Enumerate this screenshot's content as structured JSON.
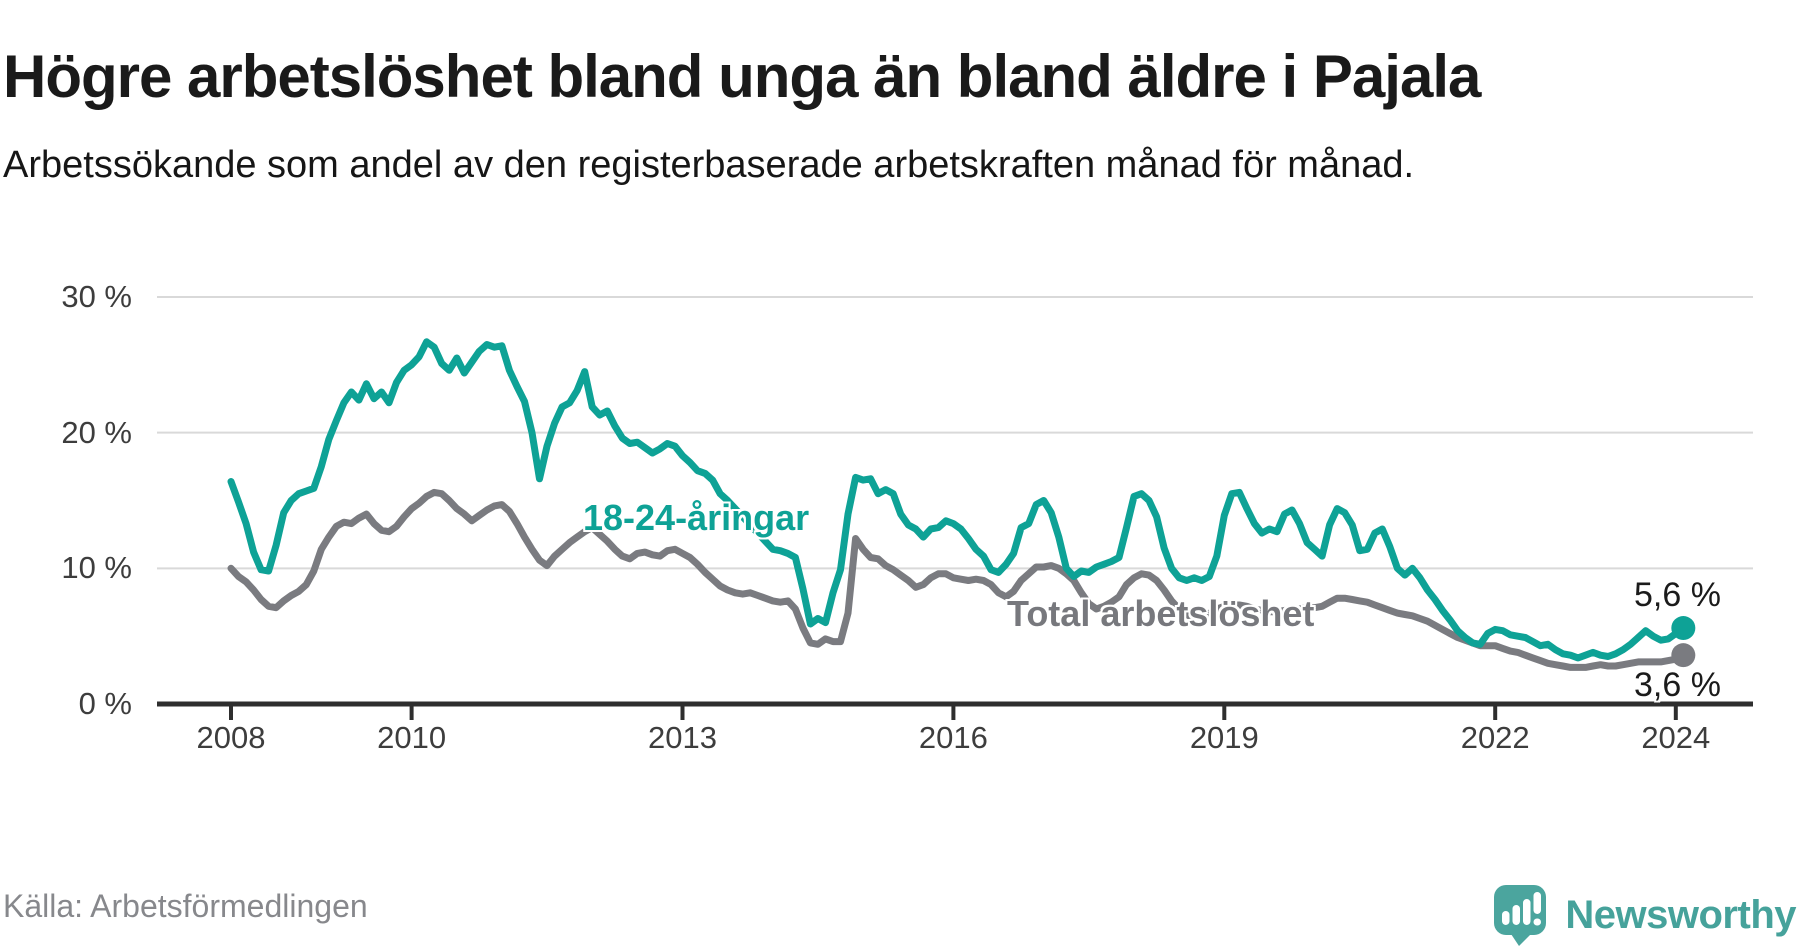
{
  "header": {
    "title": "Högre arbetslöshet bland unga än bland äldre i Pajala",
    "subtitle": "Arbetssökande som andel av den registerbaserade arbetskraften månad för månad."
  },
  "chart_data": {
    "type": "line",
    "frequency": "monthly",
    "start": "2008-01",
    "end": "2024-02",
    "grid": true,
    "ylim": [
      0,
      32
    ],
    "y_ticks": [
      {
        "value": 0,
        "label": "0 %"
      },
      {
        "value": 10,
        "label": "10 %"
      },
      {
        "value": 20,
        "label": "20 %"
      },
      {
        "value": 30,
        "label": "30 %"
      }
    ],
    "x_ticks": [
      2008,
      2010,
      2013,
      2016,
      2019,
      2022,
      2024
    ],
    "series": [
      {
        "name": "Total arbetslöshet",
        "color": "#7A7B80",
        "end_label": "3,6 %",
        "end_value": 3.6,
        "values": [
          10.0,
          9.4,
          9.0,
          8.4,
          7.7,
          7.2,
          7.1,
          7.6,
          8.0,
          8.3,
          8.8,
          9.8,
          11.4,
          12.3,
          13.1,
          13.4,
          13.3,
          13.7,
          14.0,
          13.3,
          12.8,
          12.7,
          13.1,
          13.8,
          14.4,
          14.8,
          15.3,
          15.6,
          15.5,
          15.0,
          14.4,
          14.0,
          13.5,
          13.9,
          14.3,
          14.6,
          14.7,
          14.2,
          13.3,
          12.3,
          11.4,
          10.6,
          10.2,
          10.9,
          11.4,
          11.9,
          12.3,
          12.7,
          13.0,
          12.5,
          12.0,
          11.4,
          10.9,
          10.7,
          11.1,
          11.2,
          11.0,
          10.9,
          11.3,
          11.4,
          11.1,
          10.8,
          10.3,
          9.7,
          9.2,
          8.7,
          8.4,
          8.2,
          8.1,
          8.2,
          8.0,
          7.8,
          7.6,
          7.5,
          7.6,
          7.0,
          5.6,
          4.5,
          4.4,
          4.8,
          4.6,
          4.6,
          6.7,
          12.2,
          11.4,
          10.8,
          10.7,
          10.2,
          9.9,
          9.5,
          9.1,
          8.6,
          8.8,
          9.3,
          9.6,
          9.6,
          9.3,
          9.2,
          9.1,
          9.2,
          9.1,
          8.8,
          8.2,
          7.9,
          8.3,
          9.1,
          9.6,
          10.1,
          10.1,
          10.2,
          10.0,
          9.6,
          9.1,
          8.2,
          7.4,
          7.0,
          7.2,
          7.5,
          7.9,
          8.8,
          9.3,
          9.6,
          9.5,
          9.1,
          8.4,
          7.6,
          7.0,
          6.6,
          6.3,
          6.4,
          6.7,
          7.0,
          7.2,
          7.3,
          7.3,
          7.2,
          7.0,
          6.9,
          6.8,
          6.8,
          6.9,
          6.9,
          7.0,
          7.1,
          7.1,
          7.2,
          7.5,
          7.8,
          7.8,
          7.7,
          7.6,
          7.5,
          7.3,
          7.1,
          6.9,
          6.7,
          6.6,
          6.5,
          6.3,
          6.1,
          5.8,
          5.5,
          5.2,
          4.9,
          4.7,
          4.5,
          4.3,
          4.3,
          4.3,
          4.1,
          3.9,
          3.8,
          3.6,
          3.4,
          3.2,
          3.0,
          2.9,
          2.8,
          2.7,
          2.7,
          2.7,
          2.8,
          2.9,
          2.8,
          2.8,
          2.9,
          3.0,
          3.1,
          3.1,
          3.1,
          3.1,
          3.2,
          3.3,
          3.6
        ]
      },
      {
        "name": "18-24-åringar",
        "color": "#0EA296",
        "end_label": "5,6 %",
        "end_value": 5.6,
        "values": [
          16.4,
          14.9,
          13.3,
          11.2,
          9.9,
          9.8,
          11.7,
          14.1,
          15.0,
          15.5,
          15.7,
          15.9,
          17.5,
          19.5,
          20.9,
          22.2,
          23.0,
          22.4,
          23.6,
          22.5,
          23.0,
          22.2,
          23.7,
          24.6,
          25.0,
          25.6,
          26.7,
          26.3,
          25.1,
          24.6,
          25.5,
          24.4,
          25.2,
          26.0,
          26.5,
          26.3,
          26.4,
          24.6,
          23.4,
          22.3,
          20.0,
          16.6,
          19.0,
          20.7,
          21.9,
          22.2,
          23.1,
          24.5,
          21.9,
          21.3,
          21.6,
          20.5,
          19.6,
          19.2,
          19.3,
          18.9,
          18.5,
          18.8,
          19.2,
          19.0,
          18.3,
          17.8,
          17.2,
          17.0,
          16.5,
          15.5,
          15.0,
          14.4,
          13.8,
          13.2,
          12.6,
          12.0,
          11.4,
          11.3,
          11.1,
          10.8,
          8.5,
          5.9,
          6.3,
          6.0,
          8.2,
          9.9,
          14.0,
          16.7,
          16.5,
          16.6,
          15.5,
          15.8,
          15.5,
          14.0,
          13.2,
          12.9,
          12.3,
          12.9,
          13.0,
          13.5,
          13.3,
          12.9,
          12.2,
          11.4,
          10.9,
          9.9,
          9.7,
          10.3,
          11.1,
          13.0,
          13.3,
          14.7,
          15.0,
          14.1,
          12.3,
          10.0,
          9.4,
          9.8,
          9.7,
          10.1,
          10.3,
          10.5,
          10.8,
          13.0,
          15.3,
          15.5,
          15.0,
          13.8,
          11.5,
          10.0,
          9.3,
          9.1,
          9.3,
          9.1,
          9.4,
          10.9,
          13.9,
          15.5,
          15.6,
          14.4,
          13.3,
          12.6,
          12.9,
          12.7,
          14.0,
          14.3,
          13.3,
          11.9,
          11.4,
          10.9,
          13.2,
          14.4,
          14.1,
          13.2,
          11.3,
          11.4,
          12.6,
          12.9,
          11.6,
          10.0,
          9.5,
          10.0,
          9.3,
          8.4,
          7.7,
          6.9,
          6.2,
          5.4,
          4.9,
          4.5,
          4.4,
          5.2,
          5.5,
          5.4,
          5.1,
          5.0,
          4.9,
          4.6,
          4.3,
          4.4,
          4.0,
          3.7,
          3.6,
          3.4,
          3.6,
          3.8,
          3.6,
          3.5,
          3.7,
          4.0,
          4.4,
          4.9,
          5.4,
          5.0,
          4.7,
          4.8,
          5.2,
          5.6
        ]
      }
    ]
  },
  "footer": {
    "source": "Källa: Arbetsförmedlingen",
    "brand": "Newsworthy"
  }
}
